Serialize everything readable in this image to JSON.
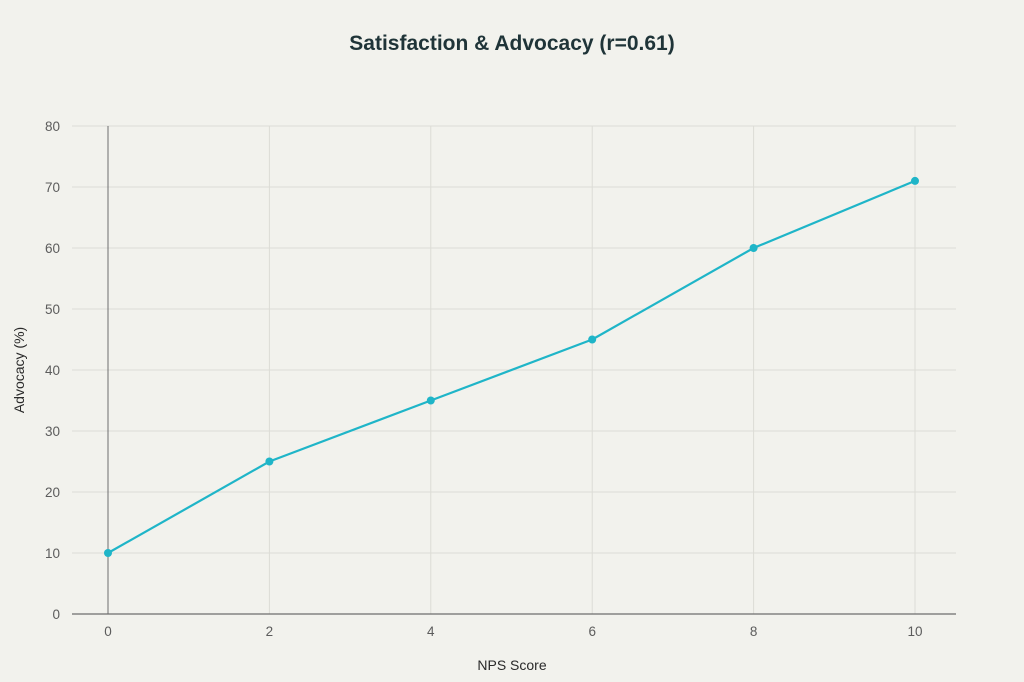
{
  "chart_data": {
    "type": "line",
    "title": "Satisfaction & Advocacy (r=0.61)",
    "xlabel": "NPS Score",
    "ylabel": "Advocacy (%)",
    "xlim": [
      0,
      10
    ],
    "ylim": [
      0,
      80
    ],
    "xticks": [
      0,
      2,
      4,
      6,
      8,
      10
    ],
    "yticks": [
      0,
      10,
      20,
      30,
      40,
      50,
      60,
      70,
      80
    ],
    "grid": true,
    "series": [
      {
        "color": "#1fb5c8",
        "x": [
          0,
          2,
          4,
          6,
          8,
          10
        ],
        "y": [
          10,
          25,
          35,
          45,
          60,
          71
        ]
      }
    ]
  }
}
